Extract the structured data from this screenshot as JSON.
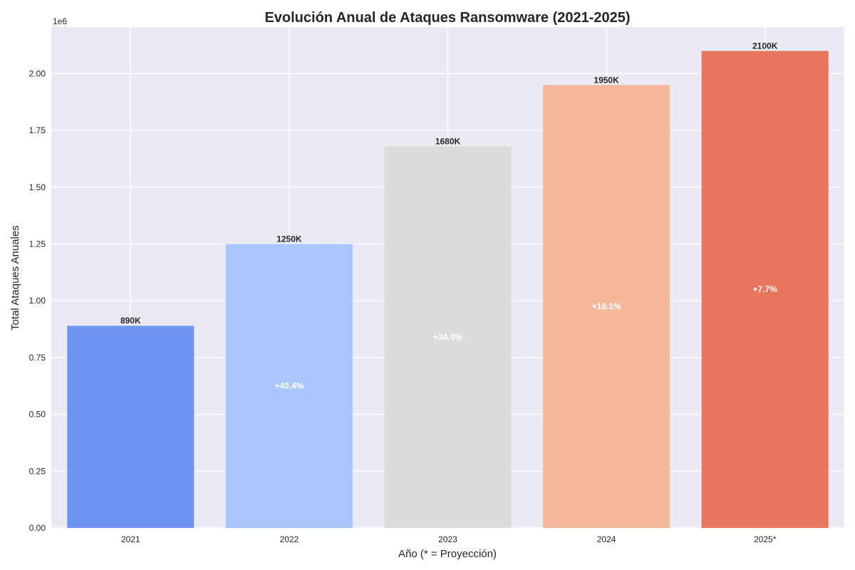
{
  "chart_data": {
    "type": "bar",
    "title": "Evolución Anual de Ataques Ransomware (2021-2025)",
    "xlabel": "Año (* = Proyección)",
    "ylabel": "Total Ataques Anuales",
    "y_offset_label": "1e6",
    "y_scale": 1000000,
    "categories": [
      "2021",
      "2022",
      "2023",
      "2024",
      "2025*"
    ],
    "values": [
      890000,
      1250000,
      1680000,
      1950000,
      2100000
    ],
    "value_labels": [
      "890K",
      "1250K",
      "1680K",
      "1950K",
      "2100K"
    ],
    "growth_labels": [
      "",
      "+40.4%",
      "+34.4%",
      "+16.1%",
      "+7.7%"
    ],
    "colors": [
      "#7094f2",
      "#a9c6fd",
      "#dcdcdc",
      "#f6b89c",
      "#e8765e"
    ],
    "ylim": [
      0,
      2205000
    ],
    "yticks": [
      0,
      250000,
      500000,
      750000,
      1000000,
      1250000,
      1500000,
      1750000,
      2000000
    ],
    "ytick_labels": [
      "0.00",
      "0.25",
      "0.50",
      "0.75",
      "1.00",
      "1.25",
      "1.50",
      "1.75",
      "2.00"
    ],
    "grid": true,
    "background_color": "#eaeaf2",
    "grid_color": "#ffffff",
    "text_color": "#262626"
  }
}
